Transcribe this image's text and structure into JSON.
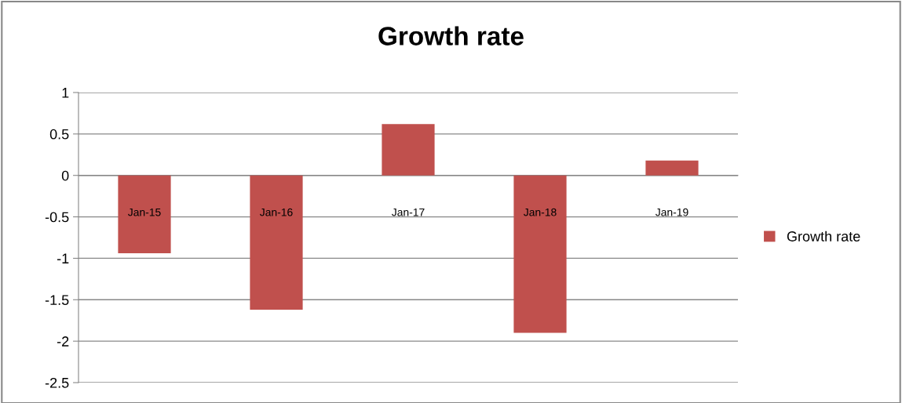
{
  "chart_data": {
    "type": "bar",
    "title": "Growth rate",
    "categories": [
      "Jan-15",
      "Jan-16",
      "Jan-17",
      "Jan-18",
      "Jan-19"
    ],
    "series": [
      {
        "name": "Growth rate",
        "color": "#c0504d",
        "values": [
          -0.94,
          -1.62,
          0.62,
          -1.9,
          0.18
        ]
      }
    ],
    "ylim": [
      -2.5,
      1
    ],
    "yticks": [
      -2.5,
      -2,
      -1.5,
      -1,
      -0.5,
      0,
      0.5,
      1
    ],
    "grid": "y",
    "legend": "right"
  }
}
